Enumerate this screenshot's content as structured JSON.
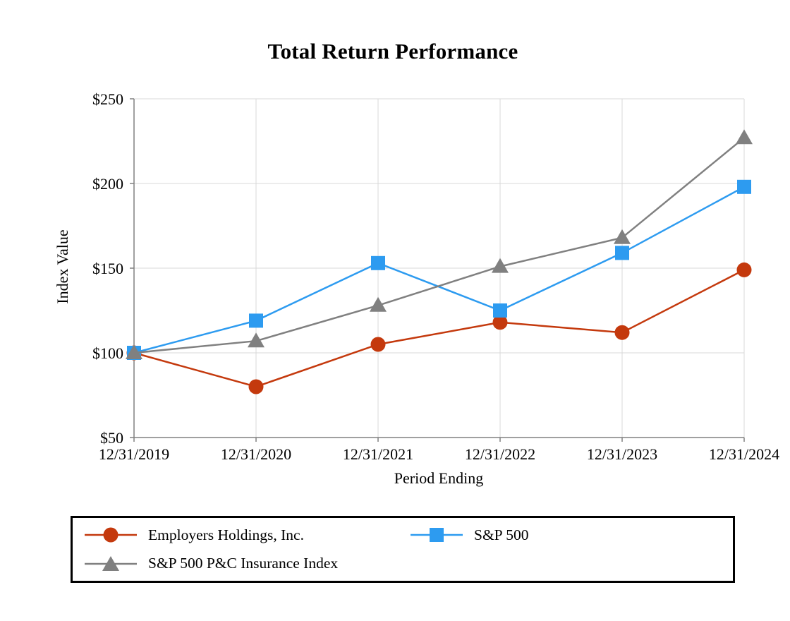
{
  "title": "Total Return Performance",
  "chart_data": {
    "type": "line",
    "title": "Total Return Performance",
    "xlabel": "Period Ending",
    "ylabel": "Index Value",
    "ylim": [
      50,
      250
    ],
    "ytick_values": [
      50,
      100,
      150,
      200,
      250
    ],
    "ytick_labels": [
      "$50",
      "$100",
      "$150",
      "$200",
      "$250"
    ],
    "categories": [
      "12/31/2019",
      "12/31/2020",
      "12/31/2021",
      "12/31/2022",
      "12/31/2023",
      "12/31/2024"
    ],
    "grid": true,
    "grid_color": "#D9D9D9",
    "axis_color": "#808080",
    "legend_position": "bottom",
    "legend_border_color": "#000000",
    "series": [
      {
        "id": "employers",
        "name": "Employers Holdings, Inc.",
        "marker": "circle",
        "color": "#C4390D",
        "values": [
          100,
          80,
          105,
          118,
          112,
          149
        ]
      },
      {
        "id": "sp500",
        "name": "S&P 500",
        "marker": "square",
        "color": "#2D9BF0",
        "values": [
          100,
          119,
          153,
          125,
          159,
          198
        ]
      },
      {
        "id": "insurance",
        "name": "S&P 500 P&C Insurance Index",
        "marker": "triangle",
        "color": "#808080",
        "values": [
          100,
          107,
          128,
          151,
          168,
          227
        ]
      }
    ]
  }
}
